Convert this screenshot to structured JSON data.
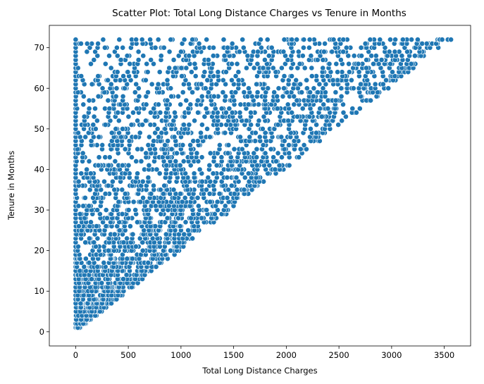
{
  "chart_data": {
    "type": "scatter",
    "title": "Scatter Plot: Total Long Distance Charges vs Tenure in Months",
    "xlabel": "Total Long Distance Charges",
    "ylabel": "Tenure in Months",
    "xlim": [
      -250,
      3750
    ],
    "ylim": [
      -3.5,
      75.5
    ],
    "xticks": [
      0,
      500,
      1000,
      1500,
      2000,
      2500,
      3000,
      3500
    ],
    "yticks": [
      0,
      10,
      20,
      30,
      40,
      50,
      60,
      70
    ],
    "grid": false,
    "point_color": "#1f77b4",
    "point_edge_color": "#ffffff",
    "relationship": "Tenure ranges 1 to 72 months; total long distance charges range 0 up to about 49.5 times tenure; many points at 0 charges for every tenure",
    "points": []
  }
}
